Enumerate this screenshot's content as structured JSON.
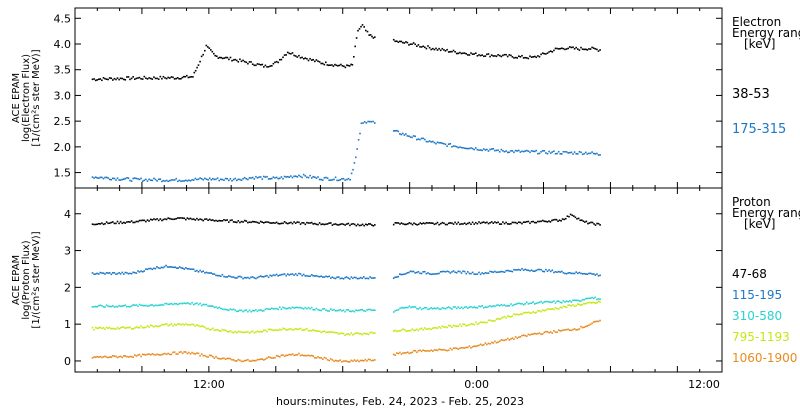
{
  "chart_data": [
    {
      "type": "scatter",
      "panel": "electron",
      "ylabel": [
        "ACE EPAM",
        "log(Electron Flux)",
        "[1/(cm²s ster MeV)]"
      ],
      "ylim": [
        1.2,
        4.7
      ],
      "yticks": [
        "1.5",
        "2.0",
        "2.5",
        "3.0",
        "3.5",
        "4.0",
        "4.5"
      ],
      "legend_title": [
        "Electron",
        "Energy ranges",
        "[keV]"
      ],
      "series": [
        {
          "name": "38-53",
          "color": "#000000",
          "points": [
            [
              1.5,
              3.33
            ],
            [
              5,
              3.35
            ],
            [
              9,
              3.36
            ],
            [
              10.5,
              3.38
            ],
            [
              11,
              3.62
            ],
            [
              11.7,
              3.97
            ],
            [
              12.5,
              3.78
            ],
            [
              14,
              3.72
            ],
            [
              16,
              3.63
            ],
            [
              17,
              3.58
            ],
            [
              18,
              3.65
            ],
            [
              19,
              3.86
            ],
            [
              20,
              3.78
            ],
            [
              22,
              3.65
            ],
            [
              23.5,
              3.6
            ],
            [
              24.3,
              3.58
            ],
            [
              24.8,
              3.6
            ],
            [
              25.3,
              4.28
            ],
            [
              25.7,
              4.37
            ],
            [
              26.3,
              4.18
            ],
            [
              26.8,
              4.15
            ]
          ]
        },
        {
          "name": "",
          "color": "#000000",
          "points": [
            [
              28.5,
              4.07
            ],
            [
              30,
              4.02
            ],
            [
              32,
              3.93
            ],
            [
              34,
              3.86
            ],
            [
              36,
              3.81
            ],
            [
              38,
              3.79
            ],
            [
              40,
              3.76
            ],
            [
              41,
              3.75
            ],
            [
              42,
              3.82
            ],
            [
              43,
              3.91
            ],
            [
              44,
              3.94
            ],
            [
              45,
              3.92
            ],
            [
              46,
              3.93
            ],
            [
              47,
              3.9
            ]
          ]
        },
        {
          "name": "175-315",
          "color": "#1e78c8",
          "points": [
            [
              1.5,
              1.43
            ],
            [
              5,
              1.38
            ],
            [
              9,
              1.37
            ],
            [
              12,
              1.39
            ],
            [
              14,
              1.38
            ],
            [
              16,
              1.42
            ],
            [
              18,
              1.4
            ],
            [
              20,
              1.46
            ],
            [
              22,
              1.4
            ],
            [
              24,
              1.39
            ],
            [
              24.6,
              1.4
            ],
            [
              25.1,
              1.8
            ],
            [
              25.6,
              2.45
            ],
            [
              26.2,
              2.53
            ],
            [
              26.8,
              2.48
            ]
          ]
        },
        {
          "name": "",
          "color": "#1e78c8",
          "points": [
            [
              28.5,
              2.32
            ],
            [
              30,
              2.22
            ],
            [
              32,
              2.1
            ],
            [
              34,
              2.03
            ],
            [
              36,
              1.98
            ],
            [
              38,
              1.94
            ],
            [
              40,
              1.92
            ],
            [
              42,
              1.91
            ],
            [
              44,
              1.9
            ],
            [
              46,
              1.9
            ],
            [
              47,
              1.86
            ]
          ]
        }
      ]
    },
    {
      "type": "scatter",
      "panel": "proton",
      "xlabel": "hours:minutes, Feb. 24, 2023 - Feb. 25, 2023",
      "ylabel": [
        "ACE EPAM",
        "log(Proton Flux)",
        "[1/(cm²s ster MeV)]"
      ],
      "ylim": [
        -0.3,
        4.7
      ],
      "yticks": [
        "0",
        "1",
        "2",
        "3",
        "4"
      ],
      "xlim": [
        0,
        58
      ],
      "xticks": [
        "12:00",
        "0:00",
        "12:00"
      ],
      "legend_title": [
        "Proton",
        "Energy ranges",
        "[keV]"
      ],
      "series": [
        {
          "name": "47-68",
          "color": "#000000",
          "points": [
            [
              1.5,
              3.75
            ],
            [
              5,
              3.8
            ],
            [
              9,
              3.9
            ],
            [
              12,
              3.85
            ],
            [
              14,
              3.82
            ],
            [
              18,
              3.78
            ],
            [
              22,
              3.75
            ],
            [
              26,
              3.72
            ],
            [
              26.8,
              3.72
            ]
          ]
        },
        {
          "name": "",
          "color": "#000000",
          "points": [
            [
              28.5,
              3.75
            ],
            [
              32,
              3.75
            ],
            [
              36,
              3.77
            ],
            [
              40,
              3.77
            ],
            [
              42,
              3.82
            ],
            [
              43.5,
              3.85
            ],
            [
              44.5,
              4.0
            ],
            [
              45.5,
              3.8
            ],
            [
              47,
              3.72
            ]
          ]
        },
        {
          "name": "115-195",
          "color": "#1e78c8",
          "points": [
            [
              1.5,
              2.4
            ],
            [
              5,
              2.4
            ],
            [
              7,
              2.55
            ],
            [
              8.5,
              2.6
            ],
            [
              10,
              2.52
            ],
            [
              12,
              2.4
            ],
            [
              14,
              2.3
            ],
            [
              16,
              2.28
            ],
            [
              18,
              2.35
            ],
            [
              20,
              2.38
            ],
            [
              22,
              2.3
            ],
            [
              24,
              2.28
            ],
            [
              26.8,
              2.28
            ]
          ]
        },
        {
          "name": "",
          "color": "#1e78c8",
          "points": [
            [
              28.5,
              2.3
            ],
            [
              30,
              2.45
            ],
            [
              32,
              2.4
            ],
            [
              34,
              2.45
            ],
            [
              36,
              2.4
            ],
            [
              38,
              2.45
            ],
            [
              40,
              2.5
            ],
            [
              42,
              2.48
            ],
            [
              44,
              2.42
            ],
            [
              46,
              2.4
            ],
            [
              47,
              2.35
            ]
          ]
        },
        {
          "name": "310-580",
          "color": "#28d2d2",
          "points": [
            [
              1.5,
              1.5
            ],
            [
              5,
              1.52
            ],
            [
              8,
              1.55
            ],
            [
              10,
              1.6
            ],
            [
              12,
              1.52
            ],
            [
              14,
              1.4
            ],
            [
              16,
              1.38
            ],
            [
              18,
              1.45
            ],
            [
              20,
              1.48
            ],
            [
              22,
              1.42
            ],
            [
              24,
              1.38
            ],
            [
              26.8,
              1.4
            ]
          ]
        },
        {
          "name": "",
          "color": "#28d2d2",
          "points": [
            [
              28.5,
              1.35
            ],
            [
              29.5,
              1.5
            ],
            [
              31,
              1.45
            ],
            [
              33,
              1.45
            ],
            [
              35,
              1.48
            ],
            [
              37,
              1.5
            ],
            [
              39,
              1.55
            ],
            [
              41,
              1.6
            ],
            [
              43,
              1.62
            ],
            [
              45,
              1.65
            ],
            [
              46,
              1.75
            ],
            [
              47,
              1.7
            ]
          ]
        },
        {
          "name": "795-1193",
          "color": "#c8e614",
          "points": [
            [
              1.5,
              0.9
            ],
            [
              5,
              0.92
            ],
            [
              8,
              1.0
            ],
            [
              10,
              1.02
            ],
            [
              12,
              0.9
            ],
            [
              14,
              0.82
            ],
            [
              16,
              0.8
            ],
            [
              18,
              0.88
            ],
            [
              20,
              0.9
            ],
            [
              22,
              0.82
            ],
            [
              24,
              0.75
            ],
            [
              26.8,
              0.78
            ]
          ]
        },
        {
          "name": "",
          "color": "#c8e614",
          "points": [
            [
              28.5,
              0.85
            ],
            [
              31,
              0.88
            ],
            [
              33,
              0.95
            ],
            [
              35,
              1.0
            ],
            [
              37,
              1.1
            ],
            [
              39,
              1.25
            ],
            [
              41,
              1.35
            ],
            [
              43,
              1.45
            ],
            [
              45,
              1.55
            ],
            [
              46.5,
              1.6
            ],
            [
              47,
              1.62
            ]
          ]
        },
        {
          "name": "1060-1900",
          "color": "#e68c1e",
          "points": [
            [
              1.5,
              0.12
            ],
            [
              5,
              0.15
            ],
            [
              8,
              0.22
            ],
            [
              10,
              0.25
            ],
            [
              12,
              0.15
            ],
            [
              14,
              0.05
            ],
            [
              16,
              0.02
            ],
            [
              18,
              0.15
            ],
            [
              20,
              0.2
            ],
            [
              22,
              0.1
            ],
            [
              24,
              0.0
            ],
            [
              26.8,
              0.05
            ]
          ]
        },
        {
          "name": "",
          "color": "#e68c1e",
          "points": [
            [
              28.5,
              0.2
            ],
            [
              31,
              0.3
            ],
            [
              33,
              0.32
            ],
            [
              35,
              0.38
            ],
            [
              37,
              0.5
            ],
            [
              39,
              0.62
            ],
            [
              41,
              0.75
            ],
            [
              43,
              0.82
            ],
            [
              45,
              0.9
            ],
            [
              46,
              1.0
            ],
            [
              47,
              1.12
            ]
          ]
        }
      ]
    }
  ]
}
